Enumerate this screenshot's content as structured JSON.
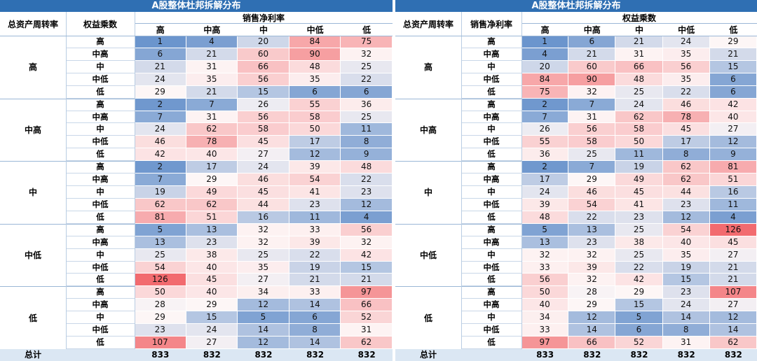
{
  "chart_data": [
    {
      "type": "heatmap",
      "title": "A股整体杜邦拆解分布",
      "row_group_header": "总资产周转率",
      "row_sub_header": "权益乘数",
      "col_header": "销售净利率",
      "groups": [
        "高",
        "中高",
        "中",
        "中低",
        "低"
      ],
      "sub_rows": [
        "高",
        "中高",
        "中",
        "中低",
        "低"
      ],
      "columns": [
        "高",
        "中高",
        "中",
        "中低",
        "低"
      ],
      "values": [
        [
          1,
          4,
          20,
          84,
          75
        ],
        [
          6,
          21,
          60,
          90,
          32
        ],
        [
          21,
          31,
          66,
          48,
          25
        ],
        [
          24,
          35,
          56,
          35,
          22
        ],
        [
          29,
          21,
          15,
          6,
          6
        ],
        [
          2,
          7,
          26,
          55,
          36
        ],
        [
          7,
          31,
          56,
          58,
          25
        ],
        [
          24,
          62,
          58,
          50,
          11
        ],
        [
          46,
          78,
          45,
          17,
          8
        ],
        [
          42,
          40,
          27,
          12,
          9
        ],
        [
          2,
          17,
          24,
          39,
          48
        ],
        [
          7,
          29,
          46,
          54,
          22
        ],
        [
          19,
          49,
          45,
          41,
          23
        ],
        [
          62,
          62,
          44,
          23,
          12
        ],
        [
          81,
          51,
          16,
          11,
          4
        ],
        [
          5,
          13,
          32,
          33,
          56
        ],
        [
          13,
          23,
          32,
          39,
          32
        ],
        [
          25,
          38,
          25,
          22,
          42
        ],
        [
          54,
          40,
          35,
          19,
          15
        ],
        [
          126,
          45,
          27,
          21,
          21
        ],
        [
          50,
          40,
          34,
          33,
          97
        ],
        [
          28,
          29,
          12,
          14,
          66
        ],
        [
          29,
          15,
          5,
          6,
          52
        ],
        [
          23,
          24,
          14,
          8,
          31
        ],
        [
          107,
          27,
          12,
          14,
          62
        ]
      ],
      "total_label": "总计",
      "totals": [
        833,
        832,
        832,
        832,
        832
      ]
    },
    {
      "type": "heatmap",
      "title": "A股整体杜邦拆解分布",
      "row_group_header": "总资产周转率",
      "row_sub_header": "销售净利率",
      "col_header": "权益乘数",
      "groups": [
        "高",
        "中高",
        "中",
        "中低",
        "低"
      ],
      "sub_rows": [
        "高",
        "中高",
        "中",
        "中低",
        "低"
      ],
      "columns": [
        "高",
        "中高",
        "中",
        "中低",
        "低"
      ],
      "values": [
        [
          1,
          6,
          21,
          24,
          29
        ],
        [
          4,
          21,
          31,
          35,
          21
        ],
        [
          20,
          60,
          66,
          56,
          15
        ],
        [
          84,
          90,
          48,
          35,
          6
        ],
        [
          75,
          32,
          25,
          22,
          6
        ],
        [
          2,
          7,
          24,
          46,
          42
        ],
        [
          7,
          31,
          62,
          78,
          40
        ],
        [
          26,
          56,
          58,
          45,
          27
        ],
        [
          55,
          58,
          50,
          17,
          12
        ],
        [
          36,
          25,
          11,
          8,
          9
        ],
        [
          2,
          7,
          19,
          62,
          81
        ],
        [
          17,
          29,
          49,
          62,
          51
        ],
        [
          24,
          46,
          45,
          44,
          16
        ],
        [
          39,
          54,
          41,
          23,
          11
        ],
        [
          48,
          22,
          23,
          12,
          4
        ],
        [
          5,
          13,
          25,
          54,
          126
        ],
        [
          13,
          23,
          38,
          40,
          45
        ],
        [
          32,
          32,
          25,
          35,
          27
        ],
        [
          33,
          39,
          22,
          19,
          21
        ],
        [
          56,
          32,
          42,
          15,
          21
        ],
        [
          50,
          28,
          29,
          23,
          107
        ],
        [
          40,
          29,
          15,
          24,
          27
        ],
        [
          34,
          12,
          5,
          14,
          12
        ],
        [
          33,
          14,
          6,
          8,
          14
        ],
        [
          97,
          66,
          52,
          31,
          62
        ]
      ],
      "total_label": "总计",
      "totals": [
        833,
        832,
        832,
        832,
        832
      ]
    }
  ],
  "colors": {
    "header_blue": "#2f6fb3",
    "low_blue": "#6b95cd",
    "mid_white": "#fdf6f6",
    "high_red": "#f26b6f"
  }
}
